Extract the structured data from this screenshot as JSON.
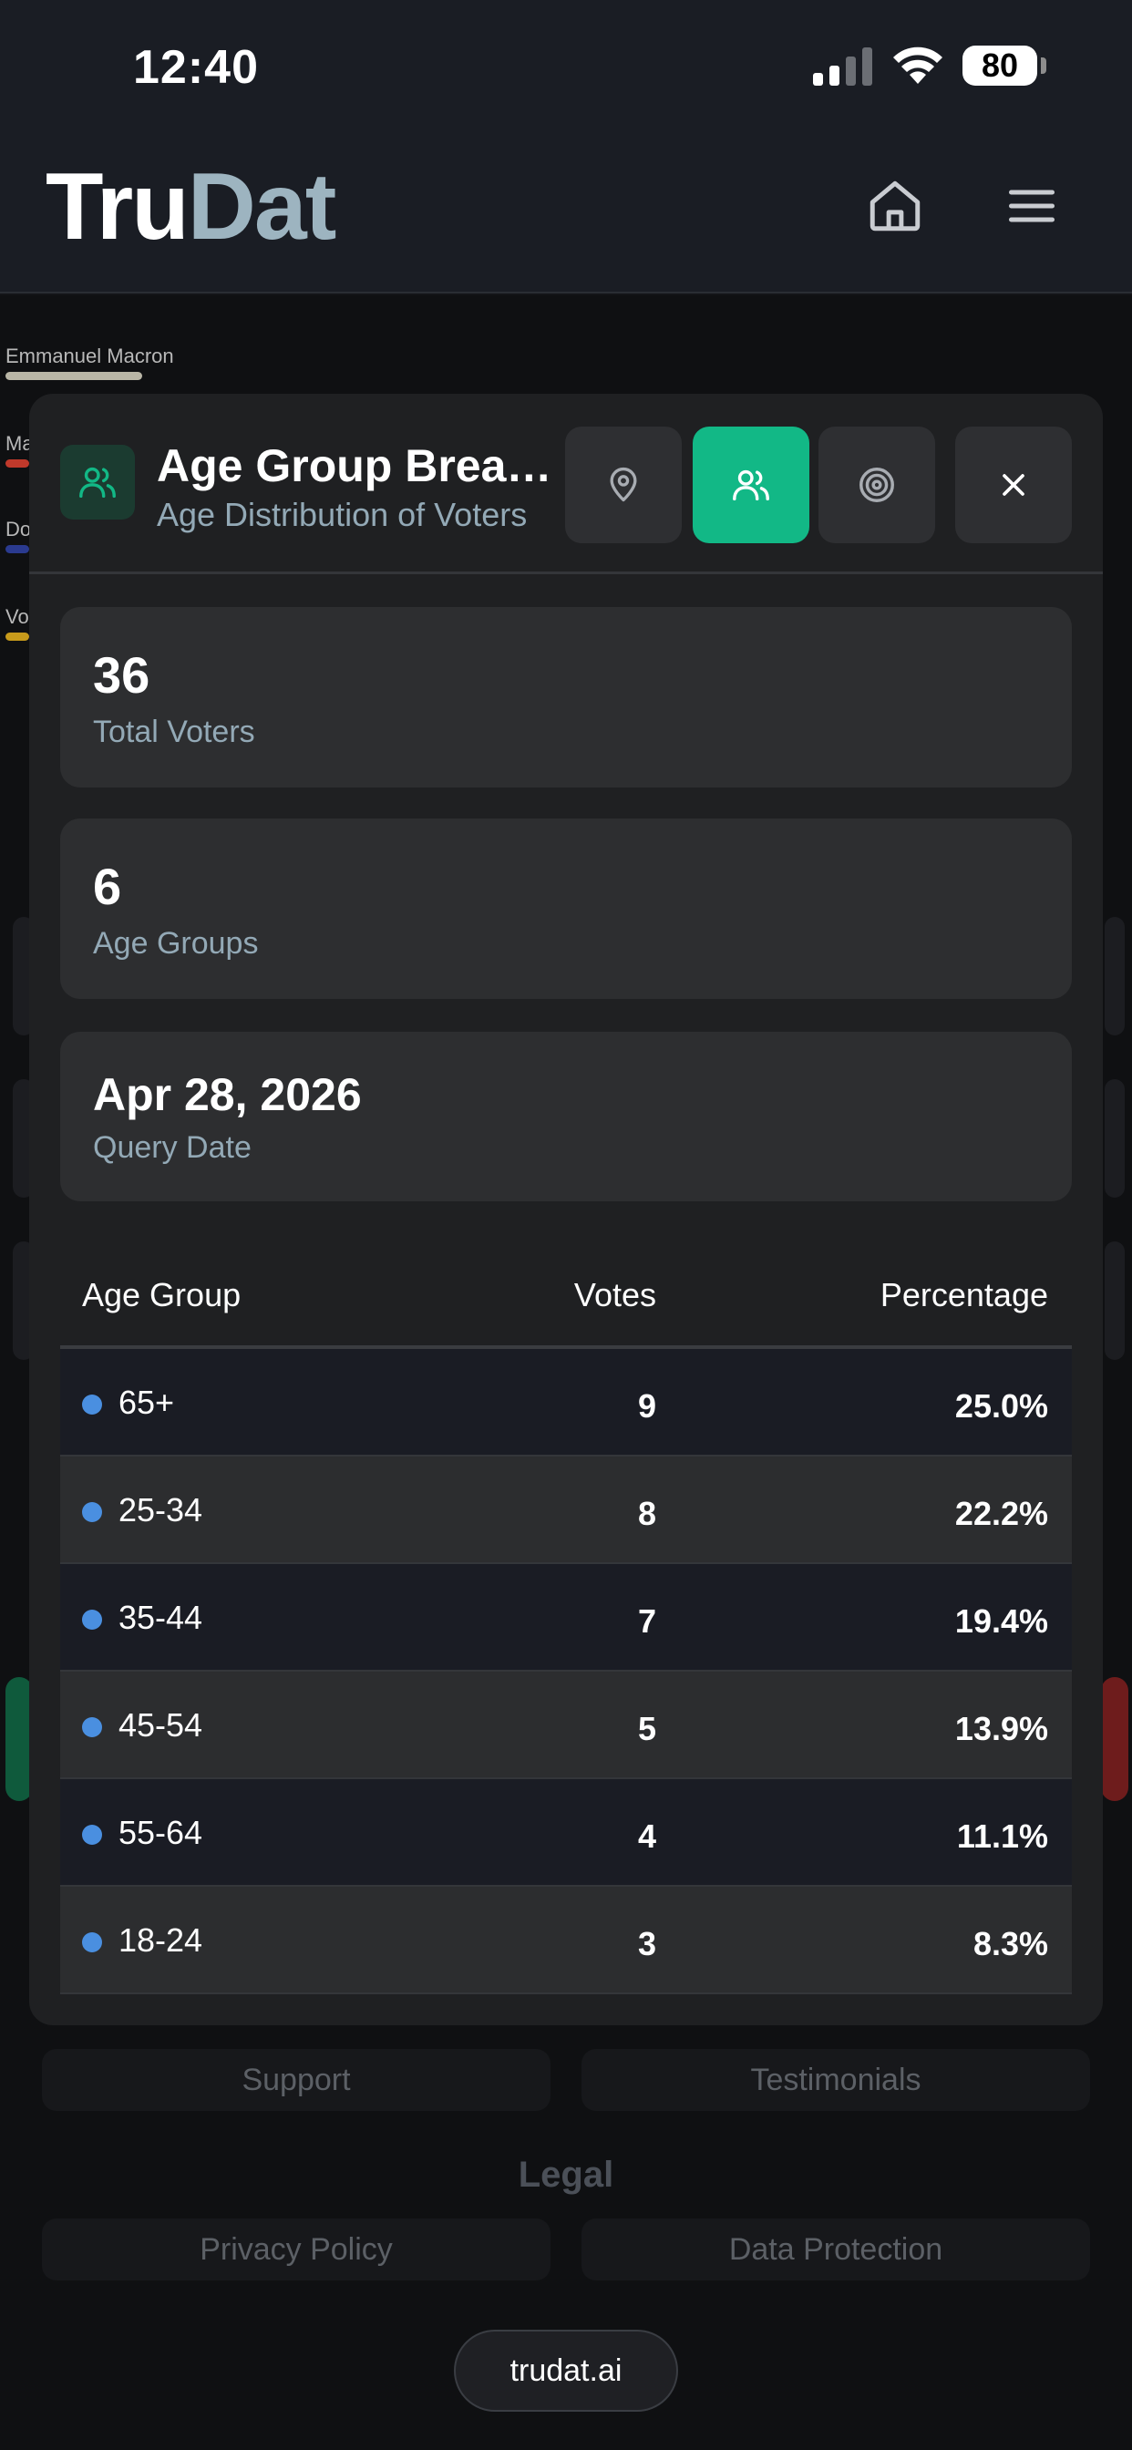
{
  "status_bar": {
    "time": "12:40",
    "battery": "80"
  },
  "header": {
    "logo_part1": "Tru",
    "logo_part2": "Dat"
  },
  "background": {
    "chart_label": "Emmanuel Macron",
    "edge_labels": [
      "Ma",
      "Do",
      "Vo"
    ],
    "bar_colors": [
      "#b9b6a6",
      "#c0392b",
      "#2a3a8f",
      "#c79a1b"
    ],
    "footer_links": [
      "Support",
      "Testimonials"
    ],
    "legal_heading": "Legal",
    "legal_links": [
      "Privacy Policy",
      "Data Protection"
    ],
    "site_button": "trudat.ai"
  },
  "modal": {
    "title": "Age Group Breakdown",
    "subtitle": "Age Distribution of Voters",
    "accent_color": "#12b886",
    "stats": [
      {
        "value": "36",
        "label": "Total Voters"
      },
      {
        "value": "6",
        "label": "Age Groups"
      },
      {
        "value": "Apr 28, 2026",
        "label": "Query Date"
      }
    ],
    "table": {
      "columns": [
        "Age Group",
        "Votes",
        "Percentage"
      ],
      "rows": [
        {
          "group": "65+",
          "votes": "9",
          "percentage": "25.0%"
        },
        {
          "group": "25-34",
          "votes": "8",
          "percentage": "22.2%"
        },
        {
          "group": "35-44",
          "votes": "7",
          "percentage": "19.4%"
        },
        {
          "group": "45-54",
          "votes": "5",
          "percentage": "13.9%"
        },
        {
          "group": "55-64",
          "votes": "4",
          "percentage": "11.1%"
        },
        {
          "group": "18-24",
          "votes": "3",
          "percentage": "8.3%"
        }
      ]
    }
  }
}
